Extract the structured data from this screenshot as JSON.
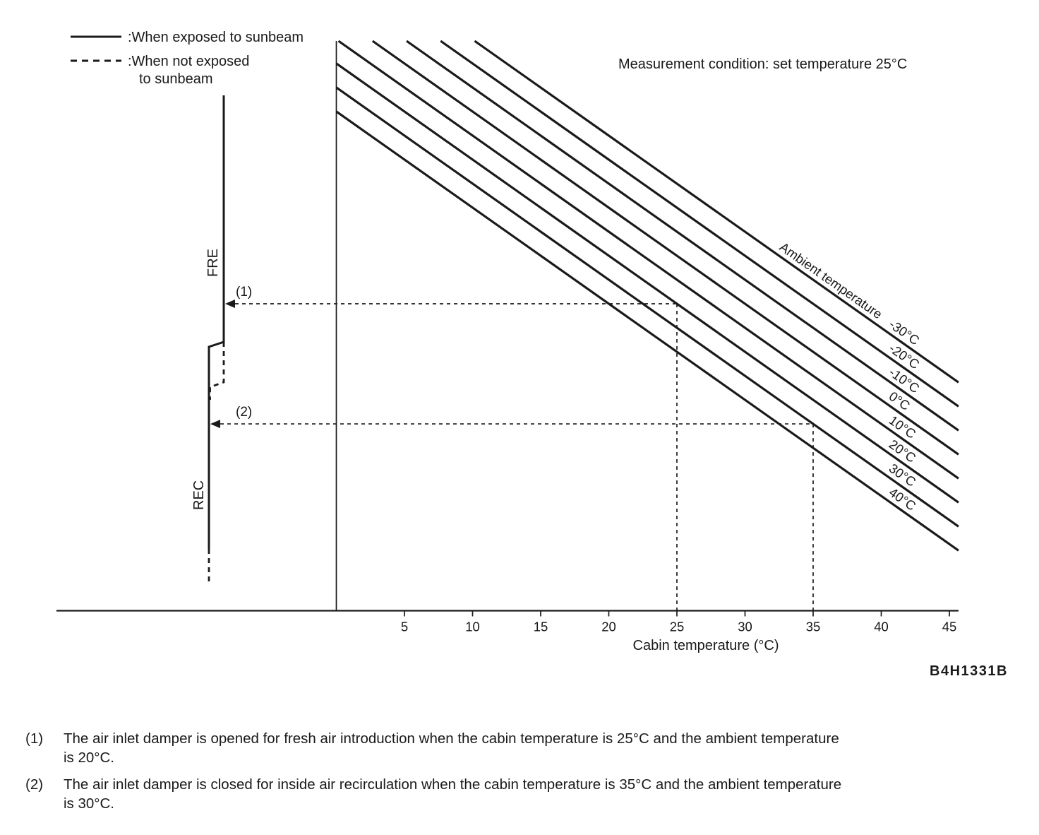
{
  "page": {
    "background": "#ffffff",
    "ink": "#1a1a1a"
  },
  "legend": {
    "items": [
      {
        "label": ":When exposed to sunbeam",
        "style": "solid"
      },
      {
        "label": ":When not exposed",
        "label2": "to sunbeam",
        "style": "dashed"
      }
    ]
  },
  "figure_code": "B4H1331B",
  "notes": [
    {
      "ref": "(1)",
      "line1": "The air inlet damper is opened for fresh air introduction when the cabin temperature is 25°C and the ambient temperature",
      "line2": "is 20°C."
    },
    {
      "ref": "(2)",
      "line1": "The air inlet damper is closed for inside air recirculation when the cabin temperature is 35°C and the ambient temperature",
      "line2": "is 30°C."
    }
  ],
  "chart_data": {
    "type": "line",
    "measurement_condition": "Measurement condition: set temperature 25°C",
    "x_axis": {
      "label": "Cabin temperature (°C)",
      "ticks": [
        5,
        10,
        15,
        20,
        25,
        30,
        35,
        40,
        45
      ],
      "range": [
        0,
        45
      ]
    },
    "y_axis": {
      "top_label": "FRE",
      "bottom_label": "REC",
      "scale": "unlabeled damper position"
    },
    "series_group_label": "Ambient temperature",
    "ambient_lines_c": [
      -30,
      -20,
      -10,
      0,
      10,
      20,
      30,
      40
    ],
    "line_labels": [
      "-30°C",
      "-20°C",
      "-10°C",
      "0°C",
      "10°C",
      "20°C",
      "30°C",
      "40°C"
    ],
    "annotated_points": [
      {
        "ref": "(1)",
        "cabin_c": 25,
        "ambient_c": 20,
        "target": "FRE"
      },
      {
        "ref": "(2)",
        "cabin_c": 35,
        "ambient_c": 30,
        "target": "REC"
      }
    ],
    "layout_hints": {
      "lines": "parallel diagonal, down to the right",
      "grid": "off",
      "legend_position": "top-left"
    }
  }
}
